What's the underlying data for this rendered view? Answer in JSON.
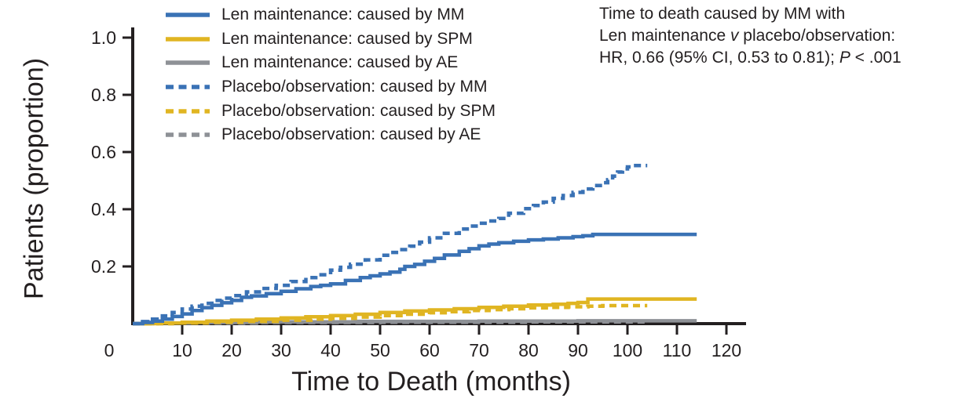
{
  "chart_data": {
    "type": "line",
    "style": "step-after cumulative-incidence curves (Kaplan-Meier style)",
    "title": "",
    "xlabel": "Time to Death (months)",
    "ylabel": "Patients (proportion)",
    "xlim": [
      0,
      120
    ],
    "ylim": [
      0,
      1.05
    ],
    "x_ticks": [
      0,
      10,
      20,
      30,
      40,
      50,
      60,
      70,
      80,
      90,
      100,
      110,
      120
    ],
    "y_ticks": [
      "0.2",
      "0.4",
      "0.6",
      "0.8",
      "1.0"
    ],
    "grid": false,
    "legend_position": "top-left",
    "axis_color": "#231f20",
    "series": [
      {
        "name": "Len maintenance: caused by MM",
        "color": "#3a72b5",
        "dash": false,
        "points": [
          [
            0,
            0
          ],
          [
            2,
            0.004
          ],
          [
            4,
            0.009
          ],
          [
            6,
            0.016
          ],
          [
            8,
            0.025
          ],
          [
            10,
            0.034
          ],
          [
            12,
            0.046
          ],
          [
            14,
            0.056
          ],
          [
            16,
            0.064
          ],
          [
            18,
            0.073
          ],
          [
            20,
            0.081
          ],
          [
            22,
            0.092
          ],
          [
            24,
            0.097
          ],
          [
            27,
            0.105
          ],
          [
            30,
            0.113
          ],
          [
            33,
            0.122
          ],
          [
            36,
            0.13
          ],
          [
            38,
            0.134
          ],
          [
            40,
            0.139
          ],
          [
            43,
            0.151
          ],
          [
            46,
            0.161
          ],
          [
            48,
            0.167
          ],
          [
            50,
            0.174
          ],
          [
            52,
            0.18
          ],
          [
            54,
            0.19
          ],
          [
            55,
            0.2
          ],
          [
            57,
            0.207
          ],
          [
            59,
            0.218
          ],
          [
            61,
            0.228
          ],
          [
            63,
            0.24
          ],
          [
            66,
            0.253
          ],
          [
            68,
            0.262
          ],
          [
            70,
            0.272
          ],
          [
            72,
            0.278
          ],
          [
            74,
            0.283
          ],
          [
            77,
            0.288
          ],
          [
            80,
            0.293
          ],
          [
            83,
            0.296
          ],
          [
            86,
            0.3
          ],
          [
            89,
            0.304
          ],
          [
            91,
            0.307
          ],
          [
            93,
            0.312
          ],
          [
            114,
            0.312
          ]
        ]
      },
      {
        "name": "Len maintenance: caused by SPM",
        "color": "#e0b522",
        "dash": false,
        "points": [
          [
            0,
            0
          ],
          [
            5,
            0.002
          ],
          [
            10,
            0.005
          ],
          [
            15,
            0.009
          ],
          [
            20,
            0.012
          ],
          [
            25,
            0.016
          ],
          [
            30,
            0.02
          ],
          [
            35,
            0.024
          ],
          [
            40,
            0.028
          ],
          [
            45,
            0.033
          ],
          [
            50,
            0.039
          ],
          [
            55,
            0.044
          ],
          [
            60,
            0.048
          ],
          [
            65,
            0.052
          ],
          [
            70,
            0.057
          ],
          [
            75,
            0.061
          ],
          [
            80,
            0.065
          ],
          [
            85,
            0.068
          ],
          [
            88,
            0.071
          ],
          [
            90,
            0.074
          ],
          [
            92,
            0.086
          ],
          [
            114,
            0.086
          ]
        ]
      },
      {
        "name": "Len maintenance: caused by AE",
        "color": "#8e9196",
        "dash": false,
        "points": [
          [
            0,
            0
          ],
          [
            4,
            0.002
          ],
          [
            12,
            0.004
          ],
          [
            25,
            0.006
          ],
          [
            45,
            0.008
          ],
          [
            70,
            0.009
          ],
          [
            90,
            0.01
          ],
          [
            114,
            0.01
          ]
        ]
      },
      {
        "name": "Placebo/observation: caused by MM",
        "color": "#3a72b5",
        "dash": true,
        "points": [
          [
            0,
            0
          ],
          [
            2,
            0.007
          ],
          [
            4,
            0.016
          ],
          [
            6,
            0.027
          ],
          [
            8,
            0.039
          ],
          [
            10,
            0.051
          ],
          [
            12,
            0.061
          ],
          [
            14,
            0.071
          ],
          [
            16,
            0.081
          ],
          [
            18,
            0.089
          ],
          [
            20,
            0.098
          ],
          [
            23,
            0.111
          ],
          [
            26,
            0.123
          ],
          [
            29,
            0.134
          ],
          [
            32,
            0.147
          ],
          [
            35,
            0.161
          ],
          [
            37,
            0.171
          ],
          [
            40,
            0.187
          ],
          [
            42,
            0.197
          ],
          [
            44,
            0.208
          ],
          [
            47,
            0.223
          ],
          [
            50,
            0.239
          ],
          [
            52,
            0.249
          ],
          [
            54,
            0.259
          ],
          [
            56,
            0.271
          ],
          [
            58,
            0.285
          ],
          [
            60,
            0.3
          ],
          [
            63,
            0.316
          ],
          [
            66,
            0.331
          ],
          [
            68,
            0.341
          ],
          [
            70,
            0.351
          ],
          [
            72,
            0.359
          ],
          [
            74,
            0.368
          ],
          [
            76,
            0.386
          ],
          [
            79,
            0.402
          ],
          [
            81,
            0.413
          ],
          [
            83,
            0.425
          ],
          [
            85,
            0.438
          ],
          [
            87,
            0.448
          ],
          [
            89,
            0.459
          ],
          [
            91,
            0.471
          ],
          [
            93,
            0.483
          ],
          [
            95,
            0.493
          ],
          [
            96,
            0.503
          ],
          [
            97,
            0.516
          ],
          [
            98,
            0.53
          ],
          [
            99,
            0.541
          ],
          [
            100,
            0.548
          ],
          [
            101,
            0.553
          ],
          [
            104,
            0.553
          ]
        ]
      },
      {
        "name": "Placebo/observation: caused by SPM",
        "color": "#e0b522",
        "dash": true,
        "points": [
          [
            0,
            0
          ],
          [
            8,
            0.002
          ],
          [
            15,
            0.005
          ],
          [
            22,
            0.008
          ],
          [
            30,
            0.012
          ],
          [
            36,
            0.016
          ],
          [
            40,
            0.019
          ],
          [
            45,
            0.023
          ],
          [
            50,
            0.028
          ],
          [
            55,
            0.033
          ],
          [
            60,
            0.038
          ],
          [
            64,
            0.042
          ],
          [
            68,
            0.046
          ],
          [
            72,
            0.049
          ],
          [
            76,
            0.052
          ],
          [
            80,
            0.055
          ],
          [
            84,
            0.057
          ],
          [
            88,
            0.059
          ],
          [
            92,
            0.061
          ],
          [
            95,
            0.063
          ],
          [
            104,
            0.063
          ]
        ]
      },
      {
        "name": "Placebo/observation: caused by AE",
        "color": "#8e9196",
        "dash": true,
        "points": [
          [
            0,
            0
          ],
          [
            8,
            0.002
          ],
          [
            25,
            0.004
          ],
          [
            50,
            0.005
          ],
          [
            80,
            0.006
          ],
          [
            104,
            0.006
          ]
        ]
      }
    ],
    "annotation": {
      "line1": "Time to death caused by MM with",
      "line2_pre": "Len maintenance ",
      "line2_italic": "v",
      "line2_post": " placebo/observation:",
      "line3_pre": "HR, 0.66 (95% CI, 0.53 to 0.81); ",
      "line3_italic": "P",
      "line3_post": " < .001"
    }
  }
}
